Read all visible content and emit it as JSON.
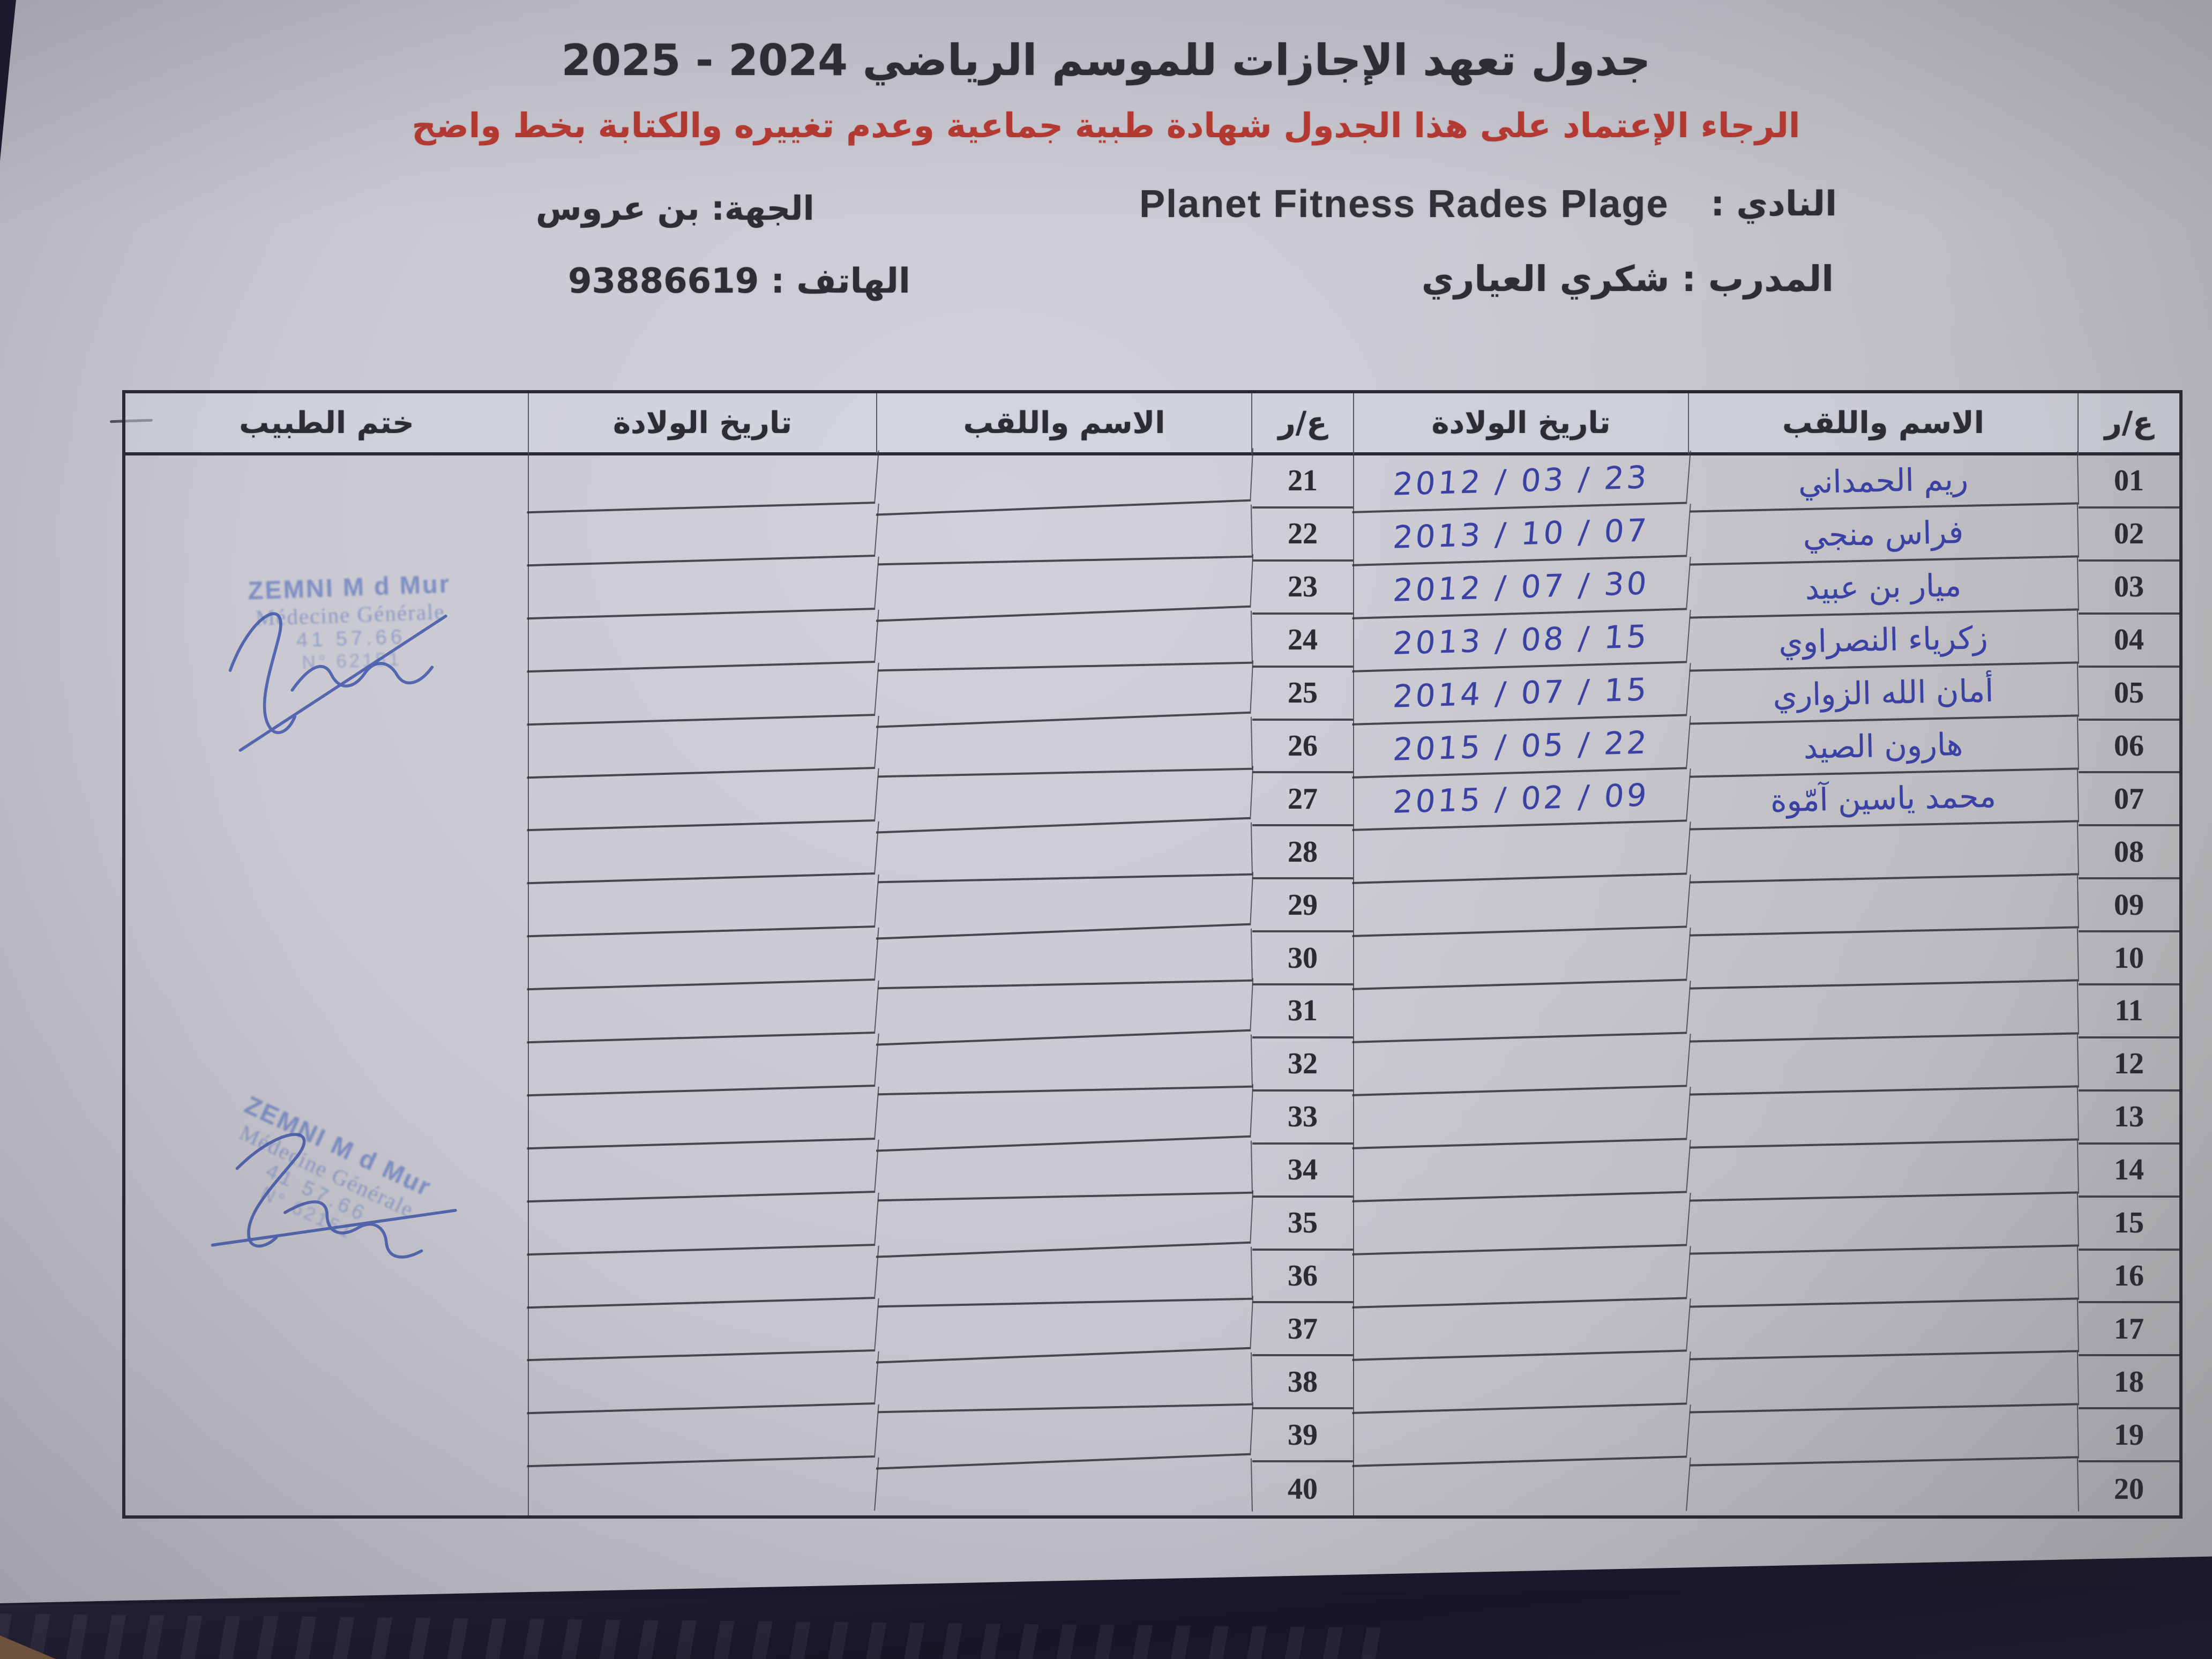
{
  "page": {
    "title": "جدول تعهد الإجازات للموسم الرياضي 2024 - 2025",
    "notice": "الرجاء الإعتماد على هذا الجدول شهادة طبية جماعية وعدم تغييره والكتابة بخط واضح",
    "club_label": "النادي :",
    "club_name": "Planet Fitness Rades Plage",
    "region_label": "الجهة:",
    "region_value": "بن عروس",
    "coach_label": "المدرب :",
    "coach_name": "شكري العياري",
    "phone_label": "الهاتف :",
    "phone_value": "93886619"
  },
  "colors": {
    "notice_red": "#b23a33",
    "ink_blue": "#3b41a2",
    "stamp_blue": "#7286c0",
    "paper": "#c9c8d0",
    "line": "#2b2a32"
  },
  "table": {
    "headers": {
      "num": "ع/ر",
      "name": "الاسم واللقب",
      "dob": "تاريخ الولادة",
      "stamp": "ختم الطبيب"
    },
    "right_rows": [
      {
        "num": "01",
        "name": "ريم الحمداني",
        "dob": "2012 / 03 / 23"
      },
      {
        "num": "02",
        "name": "فراس منجي",
        "dob": "2013 / 10 / 07"
      },
      {
        "num": "03",
        "name": "ميار بن عبيد",
        "dob": "2012 / 07 / 30"
      },
      {
        "num": "04",
        "name": "زكرياء النصراوي",
        "dob": "2013 / 08 / 15"
      },
      {
        "num": "05",
        "name": "أمان الله الزواري",
        "dob": "2014 / 07 / 15"
      },
      {
        "num": "06",
        "name": "هارون الصيد",
        "dob": "2015 / 05 / 22"
      },
      {
        "num": "07",
        "name": "محمد ياسين آمّوة",
        "dob": "2015 / 02 / 09"
      },
      {
        "num": "08",
        "name": "",
        "dob": ""
      },
      {
        "num": "09",
        "name": "",
        "dob": ""
      },
      {
        "num": "10",
        "name": "",
        "dob": ""
      },
      {
        "num": "11",
        "name": "",
        "dob": ""
      },
      {
        "num": "12",
        "name": "",
        "dob": ""
      },
      {
        "num": "13",
        "name": "",
        "dob": ""
      },
      {
        "num": "14",
        "name": "",
        "dob": ""
      },
      {
        "num": "15",
        "name": "",
        "dob": ""
      },
      {
        "num": "16",
        "name": "",
        "dob": ""
      },
      {
        "num": "17",
        "name": "",
        "dob": ""
      },
      {
        "num": "18",
        "name": "",
        "dob": ""
      },
      {
        "num": "19",
        "name": "",
        "dob": ""
      },
      {
        "num": "20",
        "name": "",
        "dob": ""
      }
    ],
    "left_rows": [
      {
        "num": "21",
        "name": "",
        "dob": ""
      },
      {
        "num": "22",
        "name": "",
        "dob": ""
      },
      {
        "num": "23",
        "name": "",
        "dob": ""
      },
      {
        "num": "24",
        "name": "",
        "dob": ""
      },
      {
        "num": "25",
        "name": "",
        "dob": ""
      },
      {
        "num": "26",
        "name": "",
        "dob": ""
      },
      {
        "num": "27",
        "name": "",
        "dob": ""
      },
      {
        "num": "28",
        "name": "",
        "dob": ""
      },
      {
        "num": "29",
        "name": "",
        "dob": ""
      },
      {
        "num": "30",
        "name": "",
        "dob": ""
      },
      {
        "num": "31",
        "name": "",
        "dob": ""
      },
      {
        "num": "32",
        "name": "",
        "dob": ""
      },
      {
        "num": "33",
        "name": "",
        "dob": ""
      },
      {
        "num": "34",
        "name": "",
        "dob": ""
      },
      {
        "num": "35",
        "name": "",
        "dob": ""
      },
      {
        "num": "36",
        "name": "",
        "dob": ""
      },
      {
        "num": "37",
        "name": "",
        "dob": ""
      },
      {
        "num": "38",
        "name": "",
        "dob": ""
      },
      {
        "num": "39",
        "name": "",
        "dob": ""
      },
      {
        "num": "40",
        "name": "",
        "dob": ""
      }
    ]
  },
  "stamps": {
    "line1": "ZEMNI M d Mur",
    "line2": "Médecine Générale",
    "line3": "41 57.66",
    "line4": "N° 62151"
  }
}
